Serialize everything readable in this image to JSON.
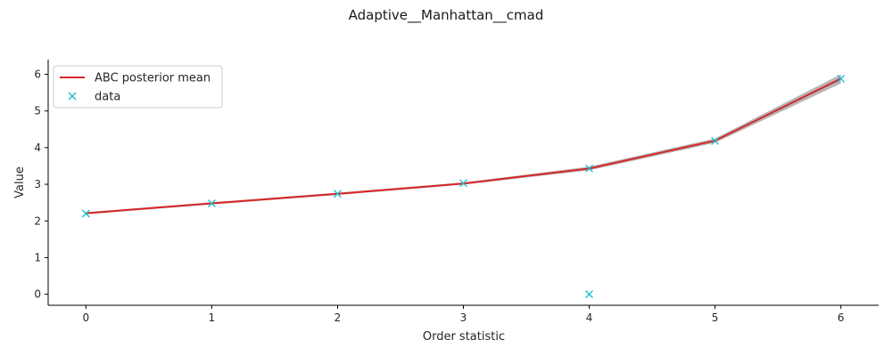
{
  "chart_data": {
    "type": "line",
    "title": "Adaptive__Manhattan__cmad",
    "xlabel": "Order statistic",
    "ylabel": "Value",
    "xlim": [
      -0.3,
      6.3
    ],
    "ylim": [
      -0.3,
      6.4
    ],
    "xticks": [
      0,
      1,
      2,
      3,
      4,
      5,
      6
    ],
    "yticks": [
      0,
      1,
      2,
      3,
      4,
      5,
      6
    ],
    "grid": false,
    "legend_position": "top-left",
    "series": [
      {
        "name": "ABC posterior mean",
        "kind": "line",
        "color": "#d62728",
        "x": [
          0,
          1,
          2,
          3,
          4,
          5,
          6
        ],
        "y": [
          2.21,
          2.48,
          2.74,
          3.02,
          3.43,
          4.19,
          5.88
        ],
        "band_lower": [
          2.18,
          2.45,
          2.71,
          2.99,
          3.38,
          4.13,
          5.75
        ],
        "band_upper": [
          2.24,
          2.51,
          2.77,
          3.05,
          3.48,
          4.25,
          6.0
        ],
        "band_color": "#9e9e9e"
      },
      {
        "name": "data",
        "kind": "marker",
        "color": "#17becf",
        "x": [
          0,
          1,
          2,
          3,
          4,
          4,
          5,
          6
        ],
        "y": [
          2.2,
          2.48,
          2.74,
          3.03,
          0.0,
          3.43,
          4.18,
          5.88
        ]
      }
    ]
  }
}
